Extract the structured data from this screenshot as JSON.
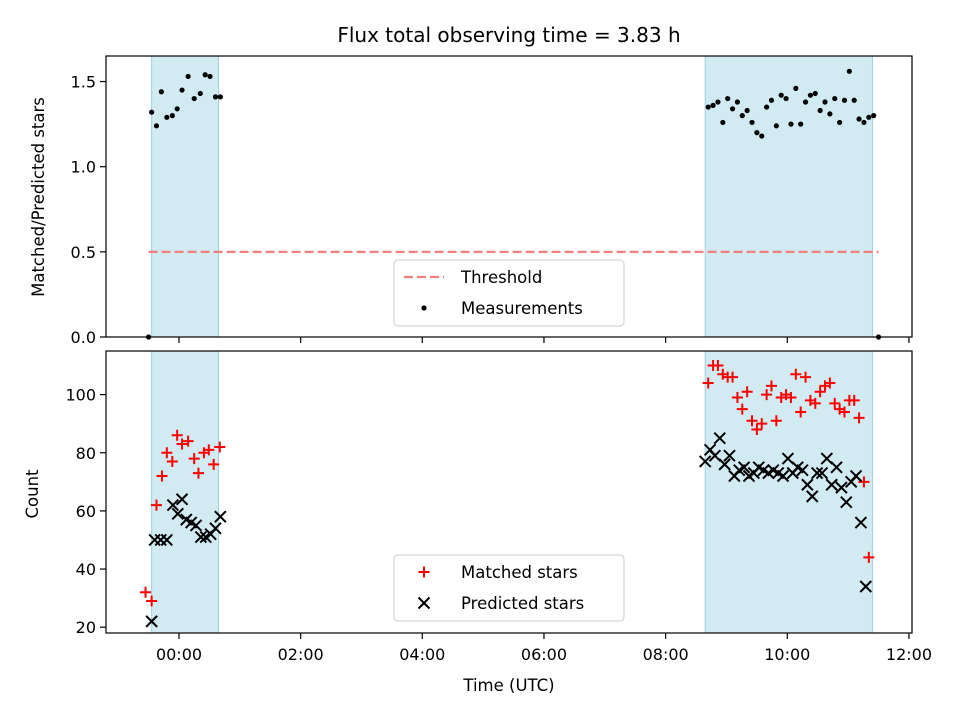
{
  "chart_data": [
    {
      "type": "scatter",
      "title": "Flux total observing time = 3.83 h",
      "xlabel": "",
      "ylabel": "Matched/Predicted stars",
      "x_unit": "hours (UTC)",
      "xlim": [
        -1.2,
        12.05
      ],
      "ylim": [
        0.0,
        1.65
      ],
      "yticks": [
        0.0,
        0.5,
        1.0,
        1.5
      ],
      "ytick_labels": [
        "0.0",
        "0.5",
        "1.0",
        "1.5"
      ],
      "shaded_intervals": [
        [
          -0.45,
          0.65
        ],
        [
          8.65,
          11.4
        ]
      ],
      "shade_color": "#add8e6",
      "threshold": {
        "label": "Threshold",
        "y": 0.5,
        "x_start": -0.5,
        "x_end": 11.5,
        "color": "#f08080",
        "style": "dashed"
      },
      "series": [
        {
          "name": "Measurements",
          "marker": "dot",
          "color": "#000000",
          "x": [
            -0.5,
            -0.45,
            -0.37,
            -0.29,
            -0.2,
            -0.11,
            -0.03,
            0.05,
            0.15,
            0.25,
            0.35,
            0.43,
            0.51,
            0.6,
            0.68,
            8.7,
            8.78,
            8.86,
            8.94,
            9.02,
            9.1,
            9.18,
            9.26,
            9.34,
            9.42,
            9.5,
            9.58,
            9.66,
            9.74,
            9.82,
            9.9,
            9.98,
            10.06,
            10.14,
            10.22,
            10.3,
            10.38,
            10.46,
            10.54,
            10.62,
            10.7,
            10.78,
            10.86,
            10.94,
            11.02,
            11.1,
            11.18,
            11.26,
            11.34,
            11.42,
            11.5
          ],
          "y": [
            0.0,
            1.32,
            1.24,
            1.44,
            1.29,
            1.3,
            1.34,
            1.45,
            1.53,
            1.4,
            1.43,
            1.54,
            1.53,
            1.41,
            1.41,
            1.35,
            1.36,
            1.38,
            1.26,
            1.4,
            1.34,
            1.38,
            1.3,
            1.33,
            1.26,
            1.2,
            1.18,
            1.35,
            1.39,
            1.24,
            1.42,
            1.4,
            1.25,
            1.46,
            1.25,
            1.38,
            1.42,
            1.43,
            1.33,
            1.38,
            1.31,
            1.4,
            1.26,
            1.39,
            1.56,
            1.39,
            1.28,
            1.26,
            1.29,
            1.3,
            0.0
          ]
        }
      ],
      "legend": {
        "position": "lower center",
        "entries": [
          "Threshold",
          "Measurements"
        ]
      }
    },
    {
      "type": "scatter",
      "xlabel": "Time (UTC)",
      "ylabel": "Count",
      "x_unit": "hours (UTC)",
      "xlim": [
        -1.2,
        12.05
      ],
      "ylim": [
        18,
        115
      ],
      "xticks": [
        0,
        2,
        4,
        6,
        8,
        10,
        12
      ],
      "xtick_labels": [
        "00:00",
        "02:00",
        "04:00",
        "06:00",
        "08:00",
        "10:00",
        "12:00"
      ],
      "yticks": [
        20,
        40,
        60,
        80,
        100
      ],
      "ytick_labels": [
        "20",
        "40",
        "60",
        "80",
        "100"
      ],
      "shaded_intervals": [
        [
          -0.45,
          0.65
        ],
        [
          8.65,
          11.4
        ]
      ],
      "series": [
        {
          "name": "Matched stars",
          "marker": "plus",
          "color": "#ff0000",
          "x": [
            -0.55,
            -0.45,
            -0.37,
            -0.28,
            -0.2,
            -0.11,
            -0.03,
            0.05,
            0.15,
            0.25,
            0.32,
            0.41,
            0.49,
            0.57,
            0.67,
            8.7,
            8.78,
            8.86,
            8.94,
            9.02,
            9.1,
            9.18,
            9.26,
            9.34,
            9.42,
            9.5,
            9.58,
            9.66,
            9.74,
            9.82,
            9.9,
            9.98,
            10.06,
            10.14,
            10.22,
            10.3,
            10.38,
            10.46,
            10.54,
            10.62,
            10.7,
            10.78,
            10.86,
            10.94,
            11.02,
            11.1,
            11.18,
            11.26,
            11.34,
            11.42,
            11.5
          ],
          "y": [
            32,
            29,
            62,
            72,
            80,
            77,
            86,
            83,
            84,
            78,
            73,
            80,
            81,
            76,
            82,
            104,
            110,
            110,
            107,
            106,
            106,
            99,
            95,
            101,
            91,
            88,
            90,
            100,
            103,
            91,
            99,
            100,
            99,
            107,
            94,
            106,
            98,
            97,
            101,
            103,
            104,
            97,
            95,
            94,
            98,
            98,
            92,
            70,
            44,
            44,
            44
          ],
          "trim": 49
        },
        {
          "name": "Predicted stars",
          "marker": "x",
          "color": "#000000",
          "x": [
            -0.45,
            -0.4,
            -0.3,
            -0.2,
            -0.1,
            -0.02,
            0.05,
            0.12,
            0.2,
            0.28,
            0.36,
            0.44,
            0.52,
            0.6,
            0.68,
            8.65,
            8.73,
            8.81,
            8.89,
            8.97,
            9.05,
            9.13,
            9.21,
            9.29,
            9.37,
            9.45,
            9.53,
            9.61,
            9.69,
            9.77,
            9.85,
            9.93,
            10.01,
            10.09,
            10.17,
            10.25,
            10.33,
            10.41,
            10.49,
            10.57,
            10.65,
            10.73,
            10.81,
            10.89,
            10.97,
            11.05,
            11.13,
            11.21,
            11.29,
            11.37,
            11.45
          ],
          "y": [
            22,
            50,
            50,
            50,
            62,
            59,
            64,
            57,
            56,
            55,
            51,
            51,
            52,
            54,
            58,
            77,
            81,
            79,
            85,
            76,
            79,
            72,
            74,
            75,
            72,
            73,
            75,
            74,
            73,
            74,
            73,
            72,
            78,
            73,
            75,
            74,
            69,
            65,
            73,
            73,
            78,
            69,
            75,
            68,
            63,
            70,
            72,
            56,
            34,
            34,
            34
          ],
          "trim": 49
        }
      ],
      "legend": {
        "position": "lower center",
        "entries": [
          "Matched stars",
          "Predicted stars"
        ]
      }
    }
  ]
}
